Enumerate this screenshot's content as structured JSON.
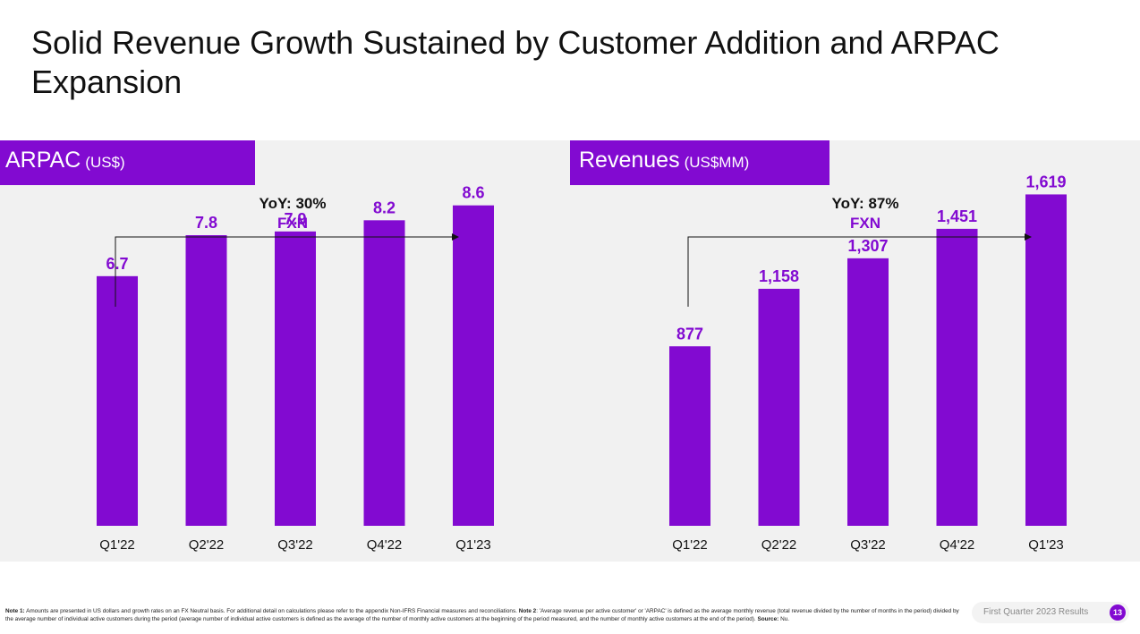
{
  "title": "Solid Revenue Growth Sustained by Customer Addition and ARPAC Expansion",
  "colors": {
    "accent": "#820ad1",
    "panel": "#f1f1f1"
  },
  "charts": {
    "arpac": {
      "label": "ARPAC",
      "unit": "(US$)"
    },
    "revenues": {
      "label": "Revenues",
      "unit": "(US$MM)"
    }
  },
  "chart_data": [
    {
      "type": "bar",
      "title": "ARPAC (US$)",
      "categories": [
        "Q1'22",
        "Q2'22",
        "Q3'22",
        "Q4'22",
        "Q1'23"
      ],
      "values": [
        6.7,
        7.8,
        7.9,
        8.2,
        8.6
      ],
      "labels": [
        "6.7",
        "7.8",
        "7.9",
        "8.2",
        "8.6"
      ],
      "ylim": [
        0,
        10.2
      ],
      "annotation": {
        "line1": "YoY: 30%",
        "line2": "FXN"
      }
    },
    {
      "type": "bar",
      "title": "Revenues (US$MM)",
      "categories": [
        "Q1'22",
        "Q2'22",
        "Q3'22",
        "Q4'22",
        "Q1'23"
      ],
      "values": [
        877,
        1158,
        1307,
        1451,
        1619
      ],
      "labels": [
        "877",
        "1,158",
        "1,307",
        "1,451",
        "1,619"
      ],
      "ylim": [
        0,
        1800
      ],
      "annotation": {
        "line1": "YoY: 87%",
        "line2": "FXN"
      }
    }
  ],
  "footnote": {
    "note1_label": "Note 1:",
    "note1_text": " Amounts are presented in US dollars and growth rates on an FX Neutral basis. For additional detail on calculations please refer to the appendix Non-IFRS Financial measures and reconciliations. ",
    "note2_label": "Note 2",
    "note2_text": ": 'Average revenue per active customer' or 'ARPAC' is defined as the average monthly revenue (total revenue divided by the number of months in the period) divided by the average number of individual active customers during the period (average number of individual active customers is defined as the average of the number of monthly active customers at the beginning of the period measured, and the number of monthly active customers at the end of the period). ",
    "source_label": "Source:",
    "source_text": " Nu."
  },
  "footer": {
    "label": "First Quarter 2023 Results",
    "page": "13"
  }
}
